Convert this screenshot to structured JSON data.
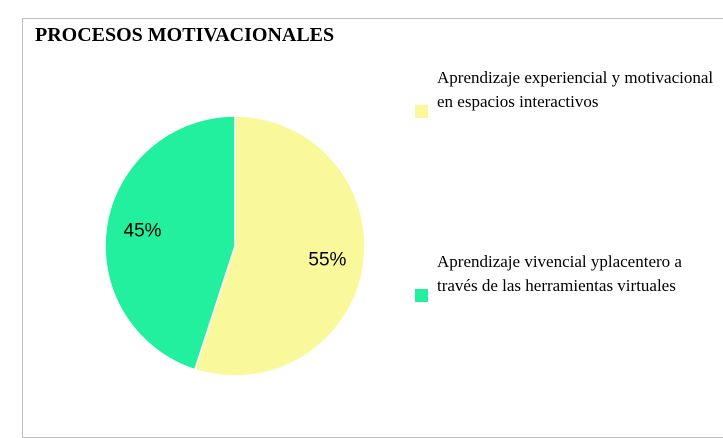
{
  "chart_data": {
    "type": "pie",
    "title": "PROCESOS MOTIVACIONALES",
    "categories": [
      "Aprendizaje experiencial y motivacional en espacios interactivos",
      "Aprendizaje vivencial yplacentero a través de las herramientas virtuales"
    ],
    "values": [
      55,
      45
    ],
    "value_labels": [
      "55%",
      "45%"
    ],
    "colors": [
      "#f9f99b",
      "#22f09e"
    ]
  }
}
